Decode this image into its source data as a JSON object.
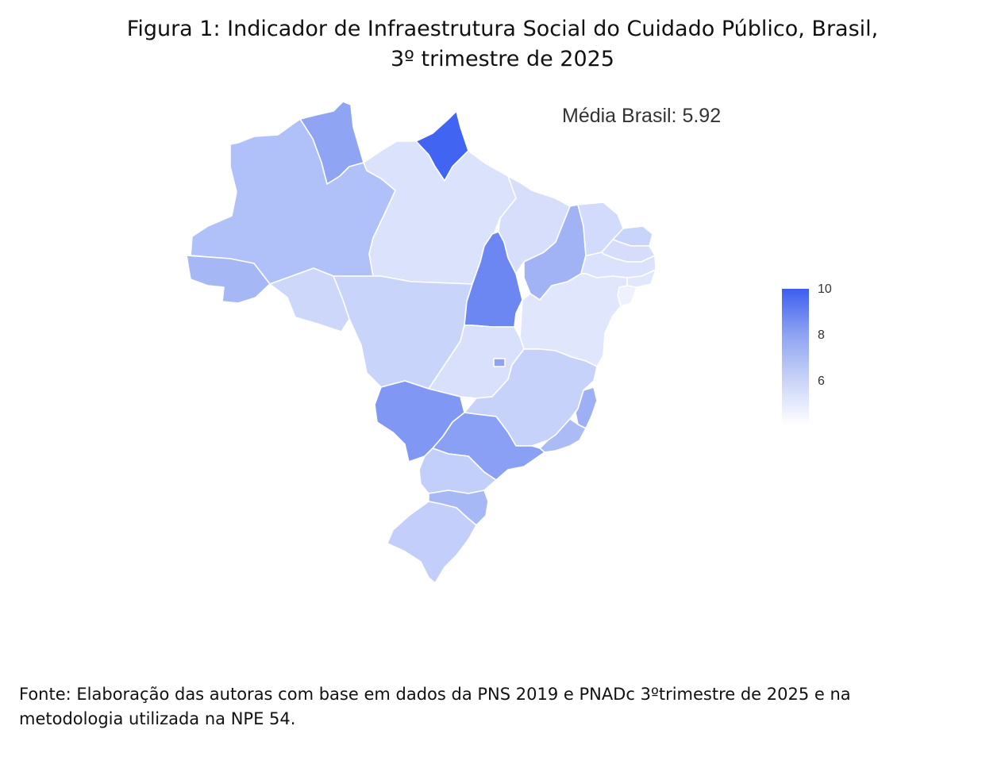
{
  "title": {
    "line1": "Figura 1: Indicador de Infraestrutura Social do Cuidado Público, Brasil,",
    "line2": "3º trimestre de 2025"
  },
  "annotation": "Média Brasil: 5.92",
  "legend": {
    "ticks": [
      "10",
      "8",
      "6"
    ],
    "colors": [
      "#3d5ef0",
      "#8ea3f2",
      "#c9d3f8",
      "#ffffff"
    ]
  },
  "source": {
    "line1": "Fonte: Elaboração das autoras com base em dados da PNS 2019 e PNADc 3ºtrimestre de 2025 e na",
    "line2": "metodologia utilizada na NPE 54."
  },
  "regions": [
    {
      "id": "RR",
      "color": "#8fa4f3"
    },
    {
      "id": "AP",
      "color": "#4264f2"
    },
    {
      "id": "AM",
      "color": "#b0c0f8"
    },
    {
      "id": "PA",
      "color": "#dbe2fc"
    },
    {
      "id": "AC",
      "color": "#a6b7f6"
    },
    {
      "id": "RO",
      "color": "#ccd7fa"
    },
    {
      "id": "MT",
      "color": "#c8d4fa"
    },
    {
      "id": "TO",
      "color": "#6c86f2"
    },
    {
      "id": "MA",
      "color": "#d6defb"
    },
    {
      "id": "PI",
      "color": "#a1b3f5"
    },
    {
      "id": "CE",
      "color": "#d2dbfb"
    },
    {
      "id": "RN",
      "color": "#c8d4fa"
    },
    {
      "id": "PB",
      "color": "#d5ddfb"
    },
    {
      "id": "PE",
      "color": "#dbe2fc"
    },
    {
      "id": "AL",
      "color": "#e1e7fd"
    },
    {
      "id": "SE",
      "color": "#eef2fe"
    },
    {
      "id": "BA",
      "color": "#e0e6fc"
    },
    {
      "id": "GO",
      "color": "#d8e0fb"
    },
    {
      "id": "DF",
      "color": "#8ea3f2"
    },
    {
      "id": "MG",
      "color": "#c6d2fa"
    },
    {
      "id": "ES",
      "color": "#9eb0f5"
    },
    {
      "id": "RJ",
      "color": "#aabbf6"
    },
    {
      "id": "MS",
      "color": "#8098f3"
    },
    {
      "id": "SP",
      "color": "#8aa0f4"
    },
    {
      "id": "PR",
      "color": "#c2cffa"
    },
    {
      "id": "SC",
      "color": "#a7b8f6"
    },
    {
      "id": "RS",
      "color": "#c3cffa"
    }
  ]
}
